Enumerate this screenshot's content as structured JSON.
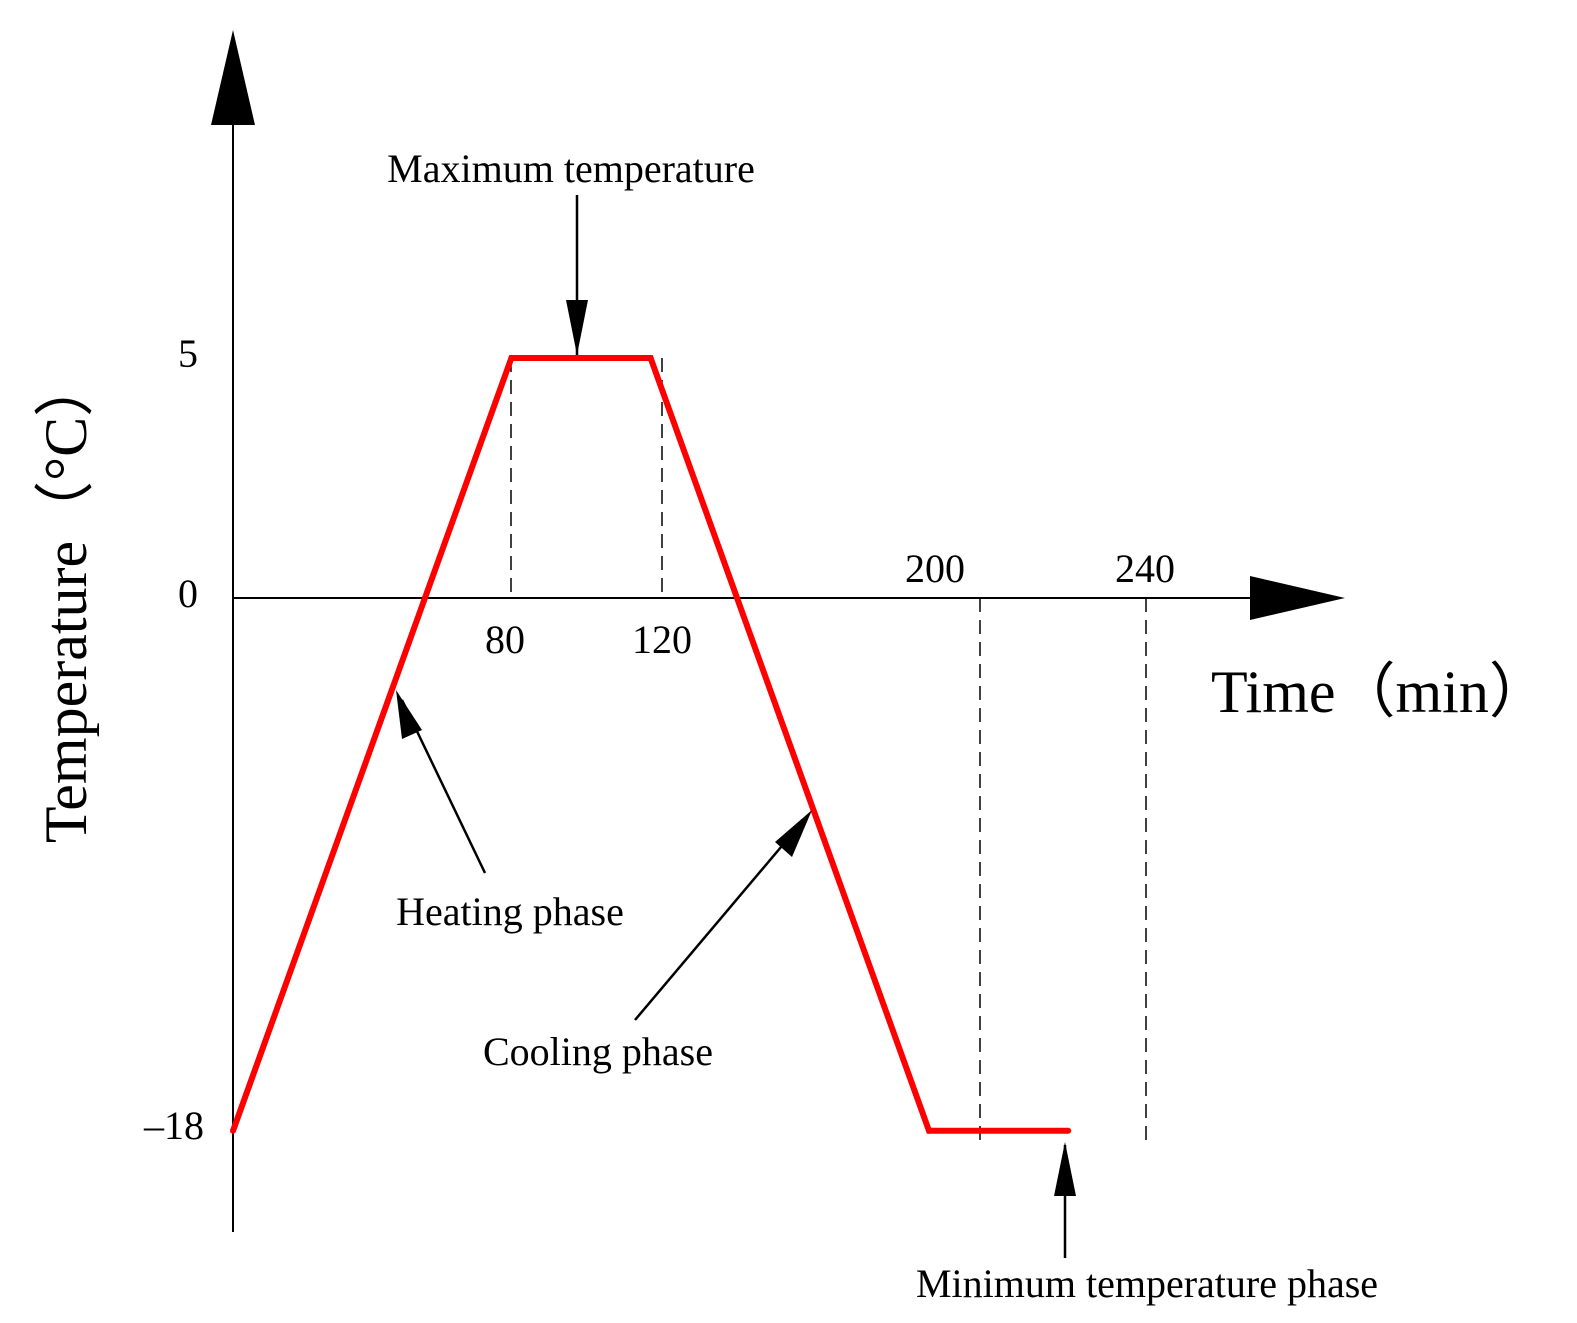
{
  "chart_data": {
    "type": "line",
    "xlabel": "Time（min）",
    "ylabel": "Temperature（°C）",
    "x_ticks": [
      80,
      120,
      200,
      240
    ],
    "y_ticks": [
      5,
      0,
      -18
    ],
    "x_tick_labels": [
      "80",
      "120",
      "200",
      "240"
    ],
    "y_tick_labels": [
      "5",
      "0",
      "–18"
    ],
    "series": [
      {
        "color": "#ff0000",
        "points": [
          {
            "x": 0,
            "y": -18
          },
          {
            "x": 80,
            "y": 5
          },
          {
            "x": 120,
            "y": 5
          },
          {
            "x": 200,
            "y": -18
          },
          {
            "x": 240,
            "y": -18
          }
        ]
      }
    ],
    "annotations": {
      "max": "Maximum temperature",
      "heating": "Heating phase",
      "cooling": "Cooling phase",
      "min": "Minimum temperature phase"
    },
    "grid": false,
    "legend": "none"
  }
}
